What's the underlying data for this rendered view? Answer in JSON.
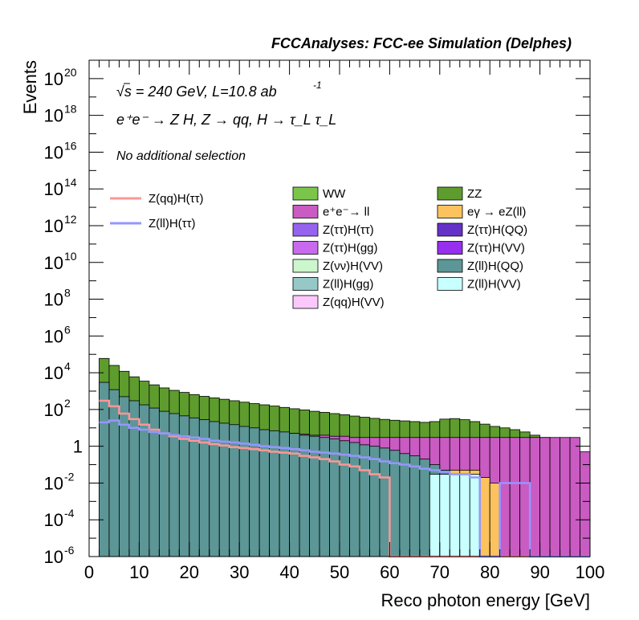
{
  "title": "FCCAnalyses: FCC-ee Simulation (Delphes)",
  "annotations": {
    "line1": "√s = 240 GeV, L=10.8 ab",
    "line1_sup": "-1",
    "line2": "e⁺e⁻ → Z H, Z → qq, H → τ_L τ_L",
    "line3": "No additional selection"
  },
  "colors": {
    "WW": "#7bc64a",
    "ZZ": "#5e9c2e",
    "ee_ll": "#c95bc2",
    "egamma": "#fbc25e",
    "Ztt_Htt": "#9663ee",
    "Ztt_HQQ": "#6532c8",
    "Ztt_Hgg": "#c869ee",
    "Ztt_HVV": "#9630ee",
    "Zvv_HVV": "#ccf6cc",
    "Zll_HQQ": "#5c9696",
    "Zll_Hgg": "#96c8c8",
    "Zll_HVV": "#c8ffff",
    "Zqq_HVV": "#fcc8fc",
    "sig_qq": "#ff9696",
    "sig_ll": "#9696ff"
  },
  "chart_data": {
    "type": "area",
    "xlabel": "Reco photon energy [GeV]",
    "ylabel": "Events",
    "xlim": [
      0,
      100
    ],
    "ylim": [
      1e-06,
      1e+21
    ],
    "yscale": "log",
    "xticks": [
      0,
      10,
      20,
      30,
      40,
      50,
      60,
      70,
      80,
      90,
      100
    ],
    "yticks": [
      {
        "label": "10",
        "sup": "-6",
        "value": 1e-06
      },
      {
        "label": "10",
        "sup": "-4",
        "value": 0.0001
      },
      {
        "label": "10",
        "sup": "-2",
        "value": 0.01
      },
      {
        "label": "1",
        "sup": "",
        "value": 1
      },
      {
        "label": "10",
        "sup": "2",
        "value": 100.0
      },
      {
        "label": "10",
        "sup": "4",
        "value": 10000.0
      },
      {
        "label": "10",
        "sup": "6",
        "value": 1000000.0
      },
      {
        "label": "10",
        "sup": "8",
        "value": 100000000.0
      },
      {
        "label": "10",
        "sup": "10",
        "value": 10000000000.0
      },
      {
        "label": "10",
        "sup": "12",
        "value": 1000000000000.0
      },
      {
        "label": "10",
        "sup": "14",
        "value": 100000000000000.0
      },
      {
        "label": "10",
        "sup": "16",
        "value": 1e+16
      },
      {
        "label": "10",
        "sup": "18",
        "value": 1e+18
      },
      {
        "label": "10",
        "sup": "20",
        "value": 1e+20
      }
    ],
    "bin_edges_start": 2,
    "bin_width": 2,
    "stack_note": "values are cumulative stacked totals per 2 GeV bin (x from 2 to 100)",
    "series": [
      {
        "name": "ZZ",
        "color_key": "ZZ",
        "values": [
          60000,
          25000,
          12000,
          6000,
          3500,
          2200,
          1500,
          1100,
          850,
          650,
          520,
          430,
          360,
          300,
          250,
          210,
          180,
          155,
          130,
          110,
          95,
          80,
          70,
          60,
          52,
          44,
          38,
          33,
          29,
          26,
          24,
          22,
          20,
          22,
          30,
          32,
          28,
          22,
          16,
          12,
          10,
          8,
          6,
          4,
          3,
          2,
          0.8,
          0.3,
          0.02
        ]
      },
      {
        "name": "WW",
        "color_key": "WW",
        "values": [
          0.5,
          0.4,
          0.35,
          0.3,
          0.25,
          0.22,
          0.2,
          0.18,
          0.16,
          0.15,
          0.14,
          0.13,
          0.12,
          0.12,
          0.11,
          0.1,
          0.1,
          0.09,
          0.09,
          0.08,
          0.08,
          0.08,
          0.07,
          0.07,
          0.07,
          1.5,
          0.3,
          0.1,
          0.06,
          0.05,
          0.05,
          0.05,
          0.04,
          0.04,
          0.04,
          0.03,
          0.03,
          0.03,
          0.03,
          0.02,
          0.02,
          0.02,
          0.02,
          0.02,
          0.02,
          0.01,
          0.01,
          0.01,
          0.01
        ]
      },
      {
        "name": "e⁺e⁻→ ll",
        "color_key": "ee_ll",
        "values": [
          50,
          40,
          30,
          25,
          20,
          18,
          16,
          14,
          12,
          11,
          10,
          9,
          8,
          7.5,
          7,
          6.5,
          6,
          5.5,
          5,
          5,
          4.5,
          4,
          4,
          3.5,
          3.5,
          3,
          3,
          3,
          3,
          3,
          3,
          3,
          3,
          3,
          3,
          3,
          3,
          3,
          3,
          3,
          3,
          3,
          3,
          3,
          3,
          3,
          3,
          3,
          0.5
        ]
      },
      {
        "name": "eγ → eZ(ll)",
        "color_key": "egamma",
        "values": [
          5,
          4,
          3.5,
          3,
          2.5,
          2,
          1.8,
          1.6,
          1.4,
          1.2,
          1,
          0.9,
          0.8,
          0.7,
          0.6,
          0.5,
          0.45,
          0.4,
          0.35,
          0.3,
          0.28,
          0.25,
          0.2,
          0.18,
          0.15,
          0.12,
          0.1,
          0.08,
          0.05,
          0.03,
          0.03,
          0.02,
          0.01,
          0.05,
          0.05,
          0.05,
          0.05,
          0.05,
          0.02,
          0.01,
          0.0,
          0.0,
          0.0,
          0.0,
          0.0,
          0.0,
          0.0,
          0.0,
          0.0
        ]
      },
      {
        "name": "Z(ττ)H(ττ)",
        "color_key": "Ztt_Htt",
        "values": [
          0.8,
          0.6,
          0.5,
          0.4,
          0.3,
          0.25,
          0.2,
          0.18,
          0.15,
          0.12,
          0.1,
          0.09,
          0.08,
          0.07,
          0.06,
          0.05,
          0.04,
          0.03,
          0.03,
          0.02,
          0.02,
          0.01,
          0.01,
          0.01,
          0.0,
          0.0,
          0.0,
          0.0,
          0.0,
          0.0,
          0.0,
          0.0,
          0.0,
          0.0,
          0.0,
          0.0,
          0.0,
          0.0,
          0.0,
          0.0,
          0.0,
          0.0,
          0.0,
          0.0,
          0.0,
          0.0,
          0.0,
          0.0,
          0.0
        ]
      },
      {
        "name": "Z(ττ)H(gg)",
        "color_key": "Ztt_Hgg",
        "values": [
          0.1,
          0.05,
          0.03,
          0.02,
          0.01,
          0.01,
          0.01,
          0.0,
          0.0,
          0.0,
          0.0,
          0.0,
          0.0,
          0.0,
          0.0,
          0.0,
          0.0,
          0.0,
          0.0,
          0.0,
          0.0,
          0.0,
          0.0,
          0.0,
          0.0,
          0.0,
          0.0,
          0.0,
          0.0,
          0.0,
          0.0,
          0.0,
          0.0,
          0.0,
          0.0,
          0.0,
          0.0,
          0.0,
          0.0,
          0.0,
          0.0,
          0.0,
          0.0,
          0.0,
          0.0,
          0.0,
          0.0,
          0.0,
          0.0
        ]
      },
      {
        "name": "Z(ll)H(QQ)",
        "color_key": "Zll_HQQ",
        "values": [
          3000,
          1200,
          500,
          300,
          180,
          120,
          80,
          60,
          45,
          35,
          28,
          22,
          18,
          15,
          12,
          10,
          8,
          7,
          6,
          5,
          4,
          3.5,
          3,
          2.5,
          2,
          1.6,
          1.2,
          1,
          0.8,
          0.6,
          0.4,
          0.3,
          0.2,
          0.1,
          0.05,
          0.0,
          0.0,
          0.0,
          0.0,
          0.0,
          0.0,
          0.0,
          0.0,
          0.0,
          0.0,
          0.0,
          0.0,
          0.0,
          0.0
        ]
      },
      {
        "name": "Z(ll)H(VV)",
        "color_key": "Zll_HVV",
        "values": [
          0.0,
          0.0,
          0.0,
          0.0,
          0.0,
          0.0,
          0.0,
          0.0,
          0.0,
          0.0,
          0.0,
          0.0,
          0.0,
          0.0,
          0.0,
          0.0,
          0.0,
          0.0,
          0.0,
          0.0,
          0.0,
          0.0,
          0.0,
          0.0,
          0.0,
          0.0,
          0.0,
          0.0,
          0.0,
          0.0,
          0.0,
          0.0,
          0.0,
          0.03,
          0.03,
          0.03,
          0.03,
          0.03,
          0.0,
          0.0,
          0.0,
          0.0,
          0.0,
          0.0,
          0.0,
          0.0,
          0.0,
          0.0,
          0.0
        ]
      },
      {
        "name": "Z(qq)H(ττ)",
        "color_key": "sig_qq",
        "line": true,
        "values": [
          300,
          150,
          60,
          30,
          15,
          8,
          5,
          3.5,
          2.5,
          2,
          1.6,
          1.3,
          1.1,
          0.9,
          0.8,
          0.7,
          0.6,
          0.5,
          0.45,
          0.4,
          0.3,
          0.25,
          0.2,
          0.15,
          0.1,
          0.08,
          0.05,
          0.03,
          0.02,
          0.0,
          0.0,
          0.0,
          0.0,
          0.0,
          0.0,
          0.0,
          0.0,
          0.0,
          0.0,
          0.0,
          0.0,
          0.0,
          0.0,
          0.0,
          0.0,
          0.0,
          0.0,
          0.0,
          0.0
        ]
      },
      {
        "name": "Z(ll)H(ττ)",
        "color_key": "sig_ll",
        "line": true,
        "values": [
          20,
          25,
          15,
          10,
          8,
          6,
          5,
          4,
          3.5,
          3,
          2.5,
          2,
          1.8,
          1.6,
          1.4,
          1.2,
          1,
          0.9,
          0.8,
          0.7,
          0.6,
          0.5,
          0.45,
          0.4,
          0.35,
          0.3,
          0.25,
          0.2,
          0.15,
          0.12,
          0.1,
          0.08,
          0.06,
          0.05,
          0.04,
          0.03,
          0.03,
          0.02,
          0.0,
          0.0,
          0.01,
          0.01,
          0.01,
          0.0,
          0.0,
          0.0,
          0.0,
          0.0,
          0.0
        ]
      }
    ],
    "legend": {
      "placement": "top-left and top-right inside frame",
      "lines": [
        {
          "name": "Z(qq)H(ττ)",
          "color_key": "sig_qq"
        },
        {
          "name": "Z(ll)H(ττ)",
          "color_key": "sig_ll"
        }
      ],
      "fills": [
        {
          "name": "WW",
          "color_key": "WW"
        },
        {
          "name": "ZZ",
          "color_key": "ZZ"
        },
        {
          "name": "e⁺e⁻→ ll",
          "color_key": "ee_ll"
        },
        {
          "name": "eγ → eZ(ll)",
          "color_key": "egamma"
        },
        {
          "name": "Z(ττ)H(ττ)",
          "color_key": "Ztt_Htt"
        },
        {
          "name": "Z(ττ)H(QQ)",
          "color_key": "Ztt_HQQ"
        },
        {
          "name": "Z(ττ)H(gg)",
          "color_key": "Ztt_Hgg"
        },
        {
          "name": "Z(ττ)H(VV)",
          "color_key": "Ztt_HVV"
        },
        {
          "name": "Z(νν)H(VV)",
          "color_key": "Zvv_HVV"
        },
        {
          "name": "Z(ll)H(QQ)",
          "color_key": "Zll_HQQ"
        },
        {
          "name": "Z(ll)H(gg)",
          "color_key": "Zll_Hgg"
        },
        {
          "name": "Z(ll)H(VV)",
          "color_key": "Zll_HVV"
        },
        {
          "name": "Z(qq)H(VV)",
          "color_key": "Zqq_HVV"
        }
      ]
    }
  }
}
